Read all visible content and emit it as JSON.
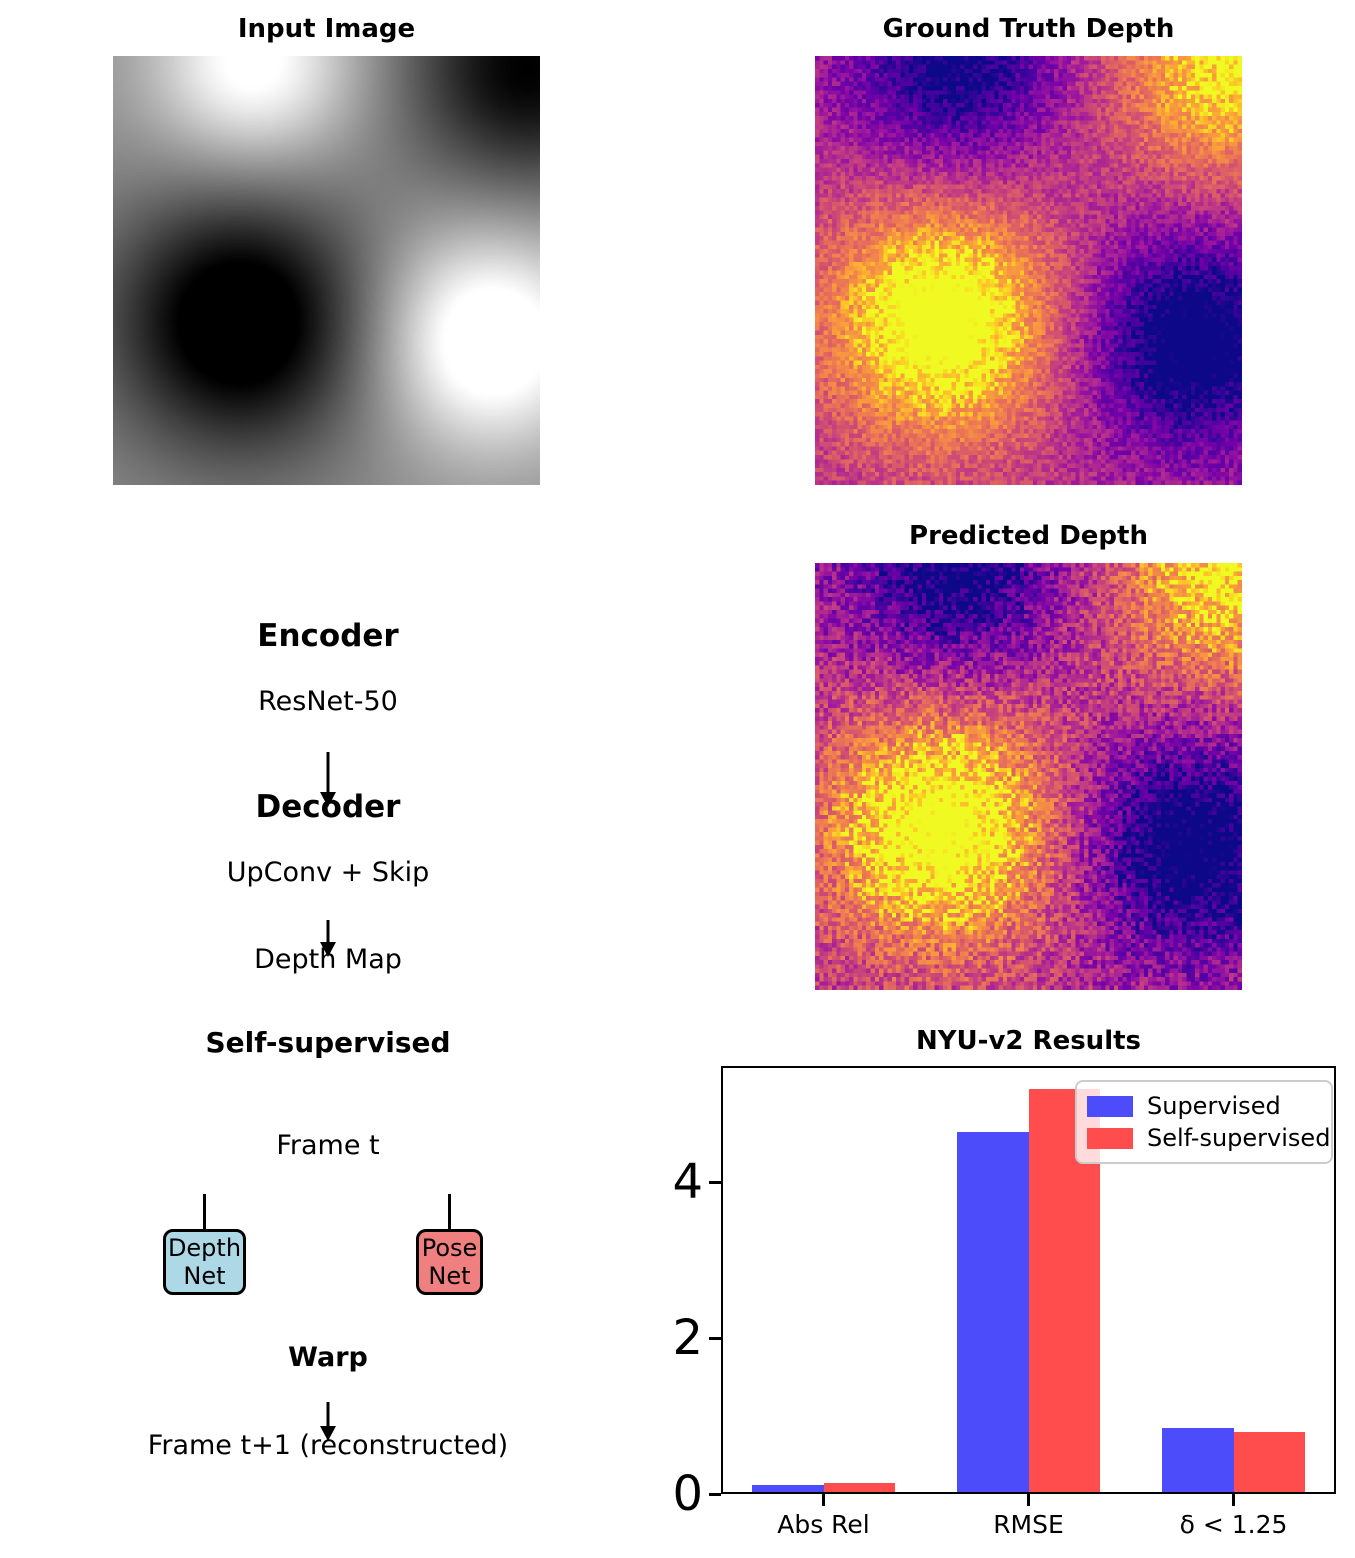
{
  "figure": {
    "panel_titles": {
      "input": "Input Image",
      "ground_truth": "Ground Truth Depth",
      "predicted": "Predicted Depth"
    },
    "pipeline": {
      "encoder_title": "Encoder",
      "encoder_subtitle": "ResNet-50",
      "decoder_title": "Decoder",
      "decoder_subtitle": "UpConv + Skip",
      "output_label": "Depth Map"
    },
    "selfsup": {
      "title": "Self-supervised",
      "frame_t": "Frame t",
      "warp": "Warp",
      "frame_t1": "Frame t+1 (reconstructed)",
      "depth_net": {
        "line1": "Depth",
        "line2": "Net",
        "fill": "#add8e6"
      },
      "pose_net": {
        "line1": "Pose",
        "line2": "Net",
        "fill": "#f08080"
      }
    }
  },
  "chart_data": [
    {
      "type": "bar",
      "title": "NYU-v2 Results",
      "categories": [
        "Abs Rel",
        "RMSE",
        "δ < 1.25"
      ],
      "series": [
        {
          "name": "Supervised",
          "color": "#4c4cfb",
          "values": [
            0.11,
            4.65,
            0.85
          ]
        },
        {
          "name": "Self-supervised",
          "color": "#ff4d4d",
          "values": [
            0.14,
            5.2,
            0.8
          ]
        }
      ],
      "yticks": [
        0,
        2,
        4
      ],
      "ylim": [
        0,
        5.49
      ],
      "xlabel": "",
      "ylabel": "",
      "grid": false,
      "legend_position": "upper right",
      "bar_width_fraction": 0.35
    },
    {
      "type": "heatmap",
      "title": "Ground Truth Depth",
      "colormap": "plasma",
      "grid_size": "100x100",
      "pattern": "inverse of input image blobs with pixel noise"
    },
    {
      "type": "heatmap",
      "title": "Predicted Depth",
      "colormap": "plasma",
      "grid_size": "100x100",
      "pattern": "inverse of input image blobs with stronger pixel noise"
    }
  ]
}
